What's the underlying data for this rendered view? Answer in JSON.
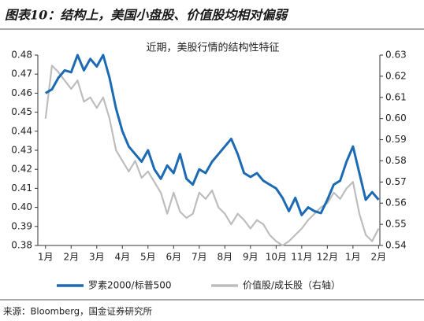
{
  "chart_data": {
    "type": "line",
    "title": "图表10：结构上，美国小盘股、价值股均相对偏弱",
    "subtitle": "近期，美股行情的结构性特征",
    "source": "来源：Bloomberg，国金证券研究所",
    "x": [
      0,
      0.25,
      0.5,
      0.75,
      1,
      1.25,
      1.5,
      1.75,
      2,
      2.25,
      2.5,
      2.75,
      3,
      3.25,
      3.5,
      3.75,
      4,
      4.25,
      4.5,
      4.75,
      5,
      5.25,
      5.5,
      5.75,
      6,
      6.25,
      6.5,
      6.75,
      7,
      7.25,
      7.5,
      7.75,
      8,
      8.25,
      8.5,
      8.75,
      9,
      9.25,
      9.5,
      9.75,
      10,
      10.25,
      10.5,
      10.75,
      11,
      11.25,
      11.5,
      11.75,
      12,
      12.25,
      12.5,
      12.75,
      13
    ],
    "series": [
      {
        "name": "罗素2000/标普500",
        "color": "#1b6ab3",
        "axis": "y",
        "values": [
          0.46,
          0.462,
          0.468,
          0.472,
          0.471,
          0.48,
          0.472,
          0.478,
          0.474,
          0.48,
          0.468,
          0.452,
          0.44,
          0.432,
          0.428,
          0.424,
          0.43,
          0.42,
          0.415,
          0.422,
          0.418,
          0.428,
          0.415,
          0.412,
          0.42,
          0.418,
          0.424,
          0.428,
          0.432,
          0.436,
          0.428,
          0.418,
          0.416,
          0.418,
          0.414,
          0.412,
          0.41,
          0.405,
          0.398,
          0.405,
          0.396,
          0.4,
          0.398,
          0.397,
          0.404,
          0.412,
          0.414,
          0.424,
          0.432,
          0.418,
          0.404,
          0.408,
          0.404
        ]
      },
      {
        "name": "价值股/成长股（右轴）",
        "color": "#bdbdbd",
        "axis": "y2",
        "values": [
          0.6,
          0.625,
          0.622,
          0.618,
          0.614,
          0.618,
          0.608,
          0.61,
          0.605,
          0.61,
          0.6,
          0.585,
          0.58,
          0.575,
          0.58,
          0.572,
          0.575,
          0.57,
          0.565,
          0.555,
          0.565,
          0.556,
          0.553,
          0.555,
          0.565,
          0.562,
          0.566,
          0.558,
          0.555,
          0.55,
          0.555,
          0.552,
          0.548,
          0.552,
          0.55,
          0.545,
          0.542,
          0.54,
          0.542,
          0.545,
          0.548,
          0.552,
          0.555,
          0.558,
          0.56,
          0.565,
          0.562,
          0.567,
          0.57,
          0.555,
          0.545,
          0.542,
          0.548
        ]
      }
    ],
    "xlim": [
      -0.3,
      13.05
    ],
    "xticks": [
      {
        "value": 0,
        "label": "1月"
      },
      {
        "value": 1,
        "label": "2月"
      },
      {
        "value": 2,
        "label": "3月"
      },
      {
        "value": 3,
        "label": "4月"
      },
      {
        "value": 4,
        "label": "5月"
      },
      {
        "value": 5,
        "label": "6月"
      },
      {
        "value": 6,
        "label": "7月"
      },
      {
        "value": 7,
        "label": "8月"
      },
      {
        "value": 8,
        "label": "9月"
      },
      {
        "value": 9,
        "label": "10月"
      },
      {
        "value": 10,
        "label": "11月"
      },
      {
        "value": 11,
        "label": "12月"
      },
      {
        "value": 12,
        "label": "1月"
      },
      {
        "value": 13,
        "label": "2月"
      }
    ],
    "ylim": [
      0.38,
      0.48
    ],
    "yticks": [
      0.38,
      0.39,
      {
        "value": 0.4,
        "label": "0.40"
      },
      0.41,
      0.42,
      0.43,
      0.44,
      0.45,
      0.46,
      0.47,
      0.48
    ],
    "y2lim": [
      0.54,
      0.63
    ],
    "y2ticks": [
      0.54,
      0.55,
      0.56,
      0.57,
      0.58,
      0.59,
      {
        "value": 0.6,
        "label": "0.60"
      },
      0.61,
      0.62,
      0.63
    ],
    "legend": "bottom"
  }
}
